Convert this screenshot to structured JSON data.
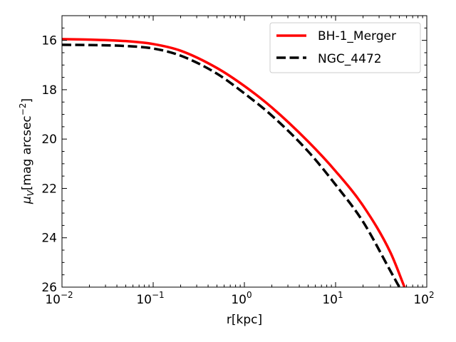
{
  "chart_data": {
    "type": "line",
    "title": "",
    "xlabel": "r[kpc]",
    "ylabel_main": "μ",
    "ylabel_sub": "V",
    "ylabel_rest": "[mag arcsec",
    "ylabel_sup": "−2",
    "ylabel_close": "]",
    "xscale": "log",
    "xlim": [
      0.01,
      100
    ],
    "ylim": [
      26,
      15
    ],
    "y_inverted": true,
    "grid": false,
    "legend_position": "upper-right",
    "x_ticks": [
      {
        "value": 0.01,
        "base": "10",
        "exp": "−2"
      },
      {
        "value": 0.1,
        "base": "10",
        "exp": "−1"
      },
      {
        "value": 1,
        "base": "10",
        "exp": "0"
      },
      {
        "value": 10,
        "base": "10",
        "exp": "1"
      },
      {
        "value": 100,
        "base": "10",
        "exp": "2"
      }
    ],
    "y_ticks": [
      16,
      18,
      20,
      22,
      24,
      26
    ],
    "y_tick_labels": [
      "16",
      "18",
      "20",
      "22",
      "24",
      "26"
    ],
    "series": [
      {
        "name": "BH-1_Merger",
        "color": "#ff0000",
        "style": "solid",
        "x": [
          0.01,
          0.02,
          0.05,
          0.1,
          0.2,
          0.5,
          1,
          2,
          5,
          10,
          20,
          40,
          57
        ],
        "y": [
          15.95,
          15.97,
          16.03,
          16.15,
          16.42,
          17.12,
          17.85,
          18.72,
          20.1,
          21.3,
          22.7,
          24.6,
          26.0
        ]
      },
      {
        "name": "NGC_4472",
        "color": "#000000",
        "style": "dashed",
        "x": [
          0.01,
          0.02,
          0.05,
          0.1,
          0.2,
          0.5,
          1,
          2,
          5,
          10,
          20,
          40,
          50
        ],
        "y": [
          16.18,
          16.19,
          16.23,
          16.33,
          16.62,
          17.35,
          18.15,
          19.05,
          20.5,
          21.85,
          23.35,
          25.35,
          26.0
        ]
      }
    ]
  }
}
